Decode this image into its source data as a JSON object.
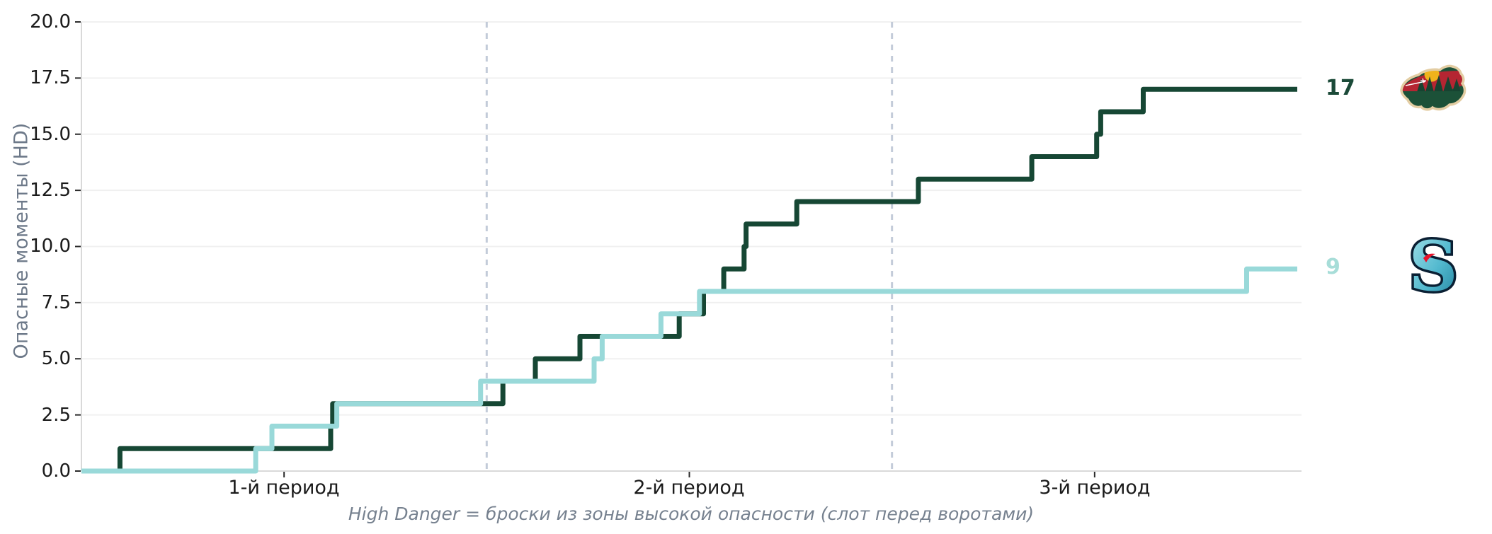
{
  "chart_data": {
    "type": "line",
    "subtype": "cumulative-step",
    "title": "",
    "ylabel": "Опасные моменты (HD)",
    "caption": "High Danger = броски из зоны высокой опасности (слот перед воротами)",
    "x_axis": {
      "unit": "minutes",
      "range_min": [
        0,
        60
      ],
      "ticks": [
        {
          "label": "1-й период",
          "min": 10
        },
        {
          "label": "2-й период",
          "min": 30
        },
        {
          "label": "3-й период",
          "min": 50
        }
      ],
      "period_boundaries_min": [
        20,
        40
      ]
    },
    "y_axis": {
      "range": [
        0,
        20
      ],
      "tick_step": 2.5,
      "tick_values": [
        20,
        17.5,
        15,
        12.5,
        10,
        7.5,
        5,
        2.5,
        0
      ],
      "tick_labels": [
        "20.0",
        "17.5",
        "15.0",
        "12.5",
        "10.0",
        "7.5",
        "5.0",
        "2.5",
        "0.0"
      ],
      "grid": true
    },
    "series": [
      {
        "name": "MIN",
        "team": "Minnesota Wild",
        "color": "#164734",
        "final_value": 17,
        "events_min": [
          1.9,
          12.3,
          12.4,
          20.8,
          22.4,
          24.6,
          29.5,
          30.7,
          31.7,
          32.7,
          32.8,
          35.3,
          41.3,
          46.9,
          50.1,
          50.3,
          52.4
        ]
      },
      {
        "name": "SEA",
        "team": "Seattle Kraken",
        "color": "#99d9d9",
        "final_value": 9,
        "events_min": [
          8.6,
          9.4,
          12.6,
          19.7,
          25.3,
          25.7,
          28.6,
          30.5,
          57.5
        ]
      }
    ],
    "colors": {
      "background": "#ffffff",
      "grid": "#f0f0f0",
      "spine": "#d9d9d9",
      "tick": "#2b2b2b",
      "tick_label": "#1a1a1a",
      "axis_label": "#6d7989",
      "period_divider": "#c3cbd9",
      "min_final_label": "#1b4a38",
      "sea_final_label": "#a7ddd8"
    },
    "legend_position": "logos-right-of-line-ends"
  }
}
